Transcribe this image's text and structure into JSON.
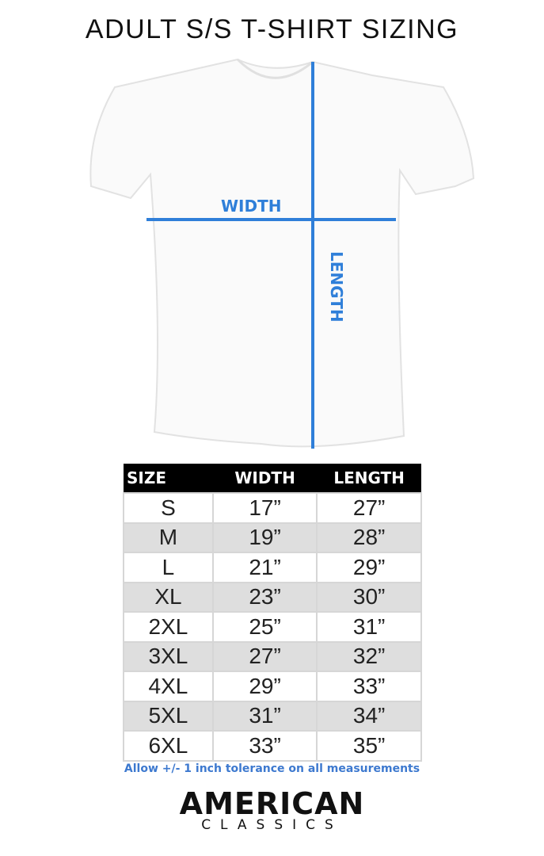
{
  "title": "ADULT S/S T-SHIRT SIZING",
  "diagram": {
    "width_label": "WIDTH",
    "length_label": "LENGTH",
    "line_color": "#2f7fd9"
  },
  "table": {
    "headers": [
      "SIZE",
      "WIDTH",
      "LENGTH"
    ],
    "rows": [
      [
        "S",
        "17”",
        "27”"
      ],
      [
        "M",
        "19”",
        "28”"
      ],
      [
        "L",
        "21”",
        "29”"
      ],
      [
        "XL",
        "23”",
        "30”"
      ],
      [
        "2XL",
        "25”",
        "31”"
      ],
      [
        "3XL",
        "27”",
        "32”"
      ],
      [
        "4XL",
        "29”",
        "33”"
      ],
      [
        "5XL",
        "31”",
        "34”"
      ],
      [
        "6XL",
        "33”",
        "35”"
      ]
    ]
  },
  "tolerance_note": "Allow +/- 1 inch tolerance on all measurements",
  "logo": {
    "line1": "AMERICAN",
    "line2": "CLASSICS"
  }
}
